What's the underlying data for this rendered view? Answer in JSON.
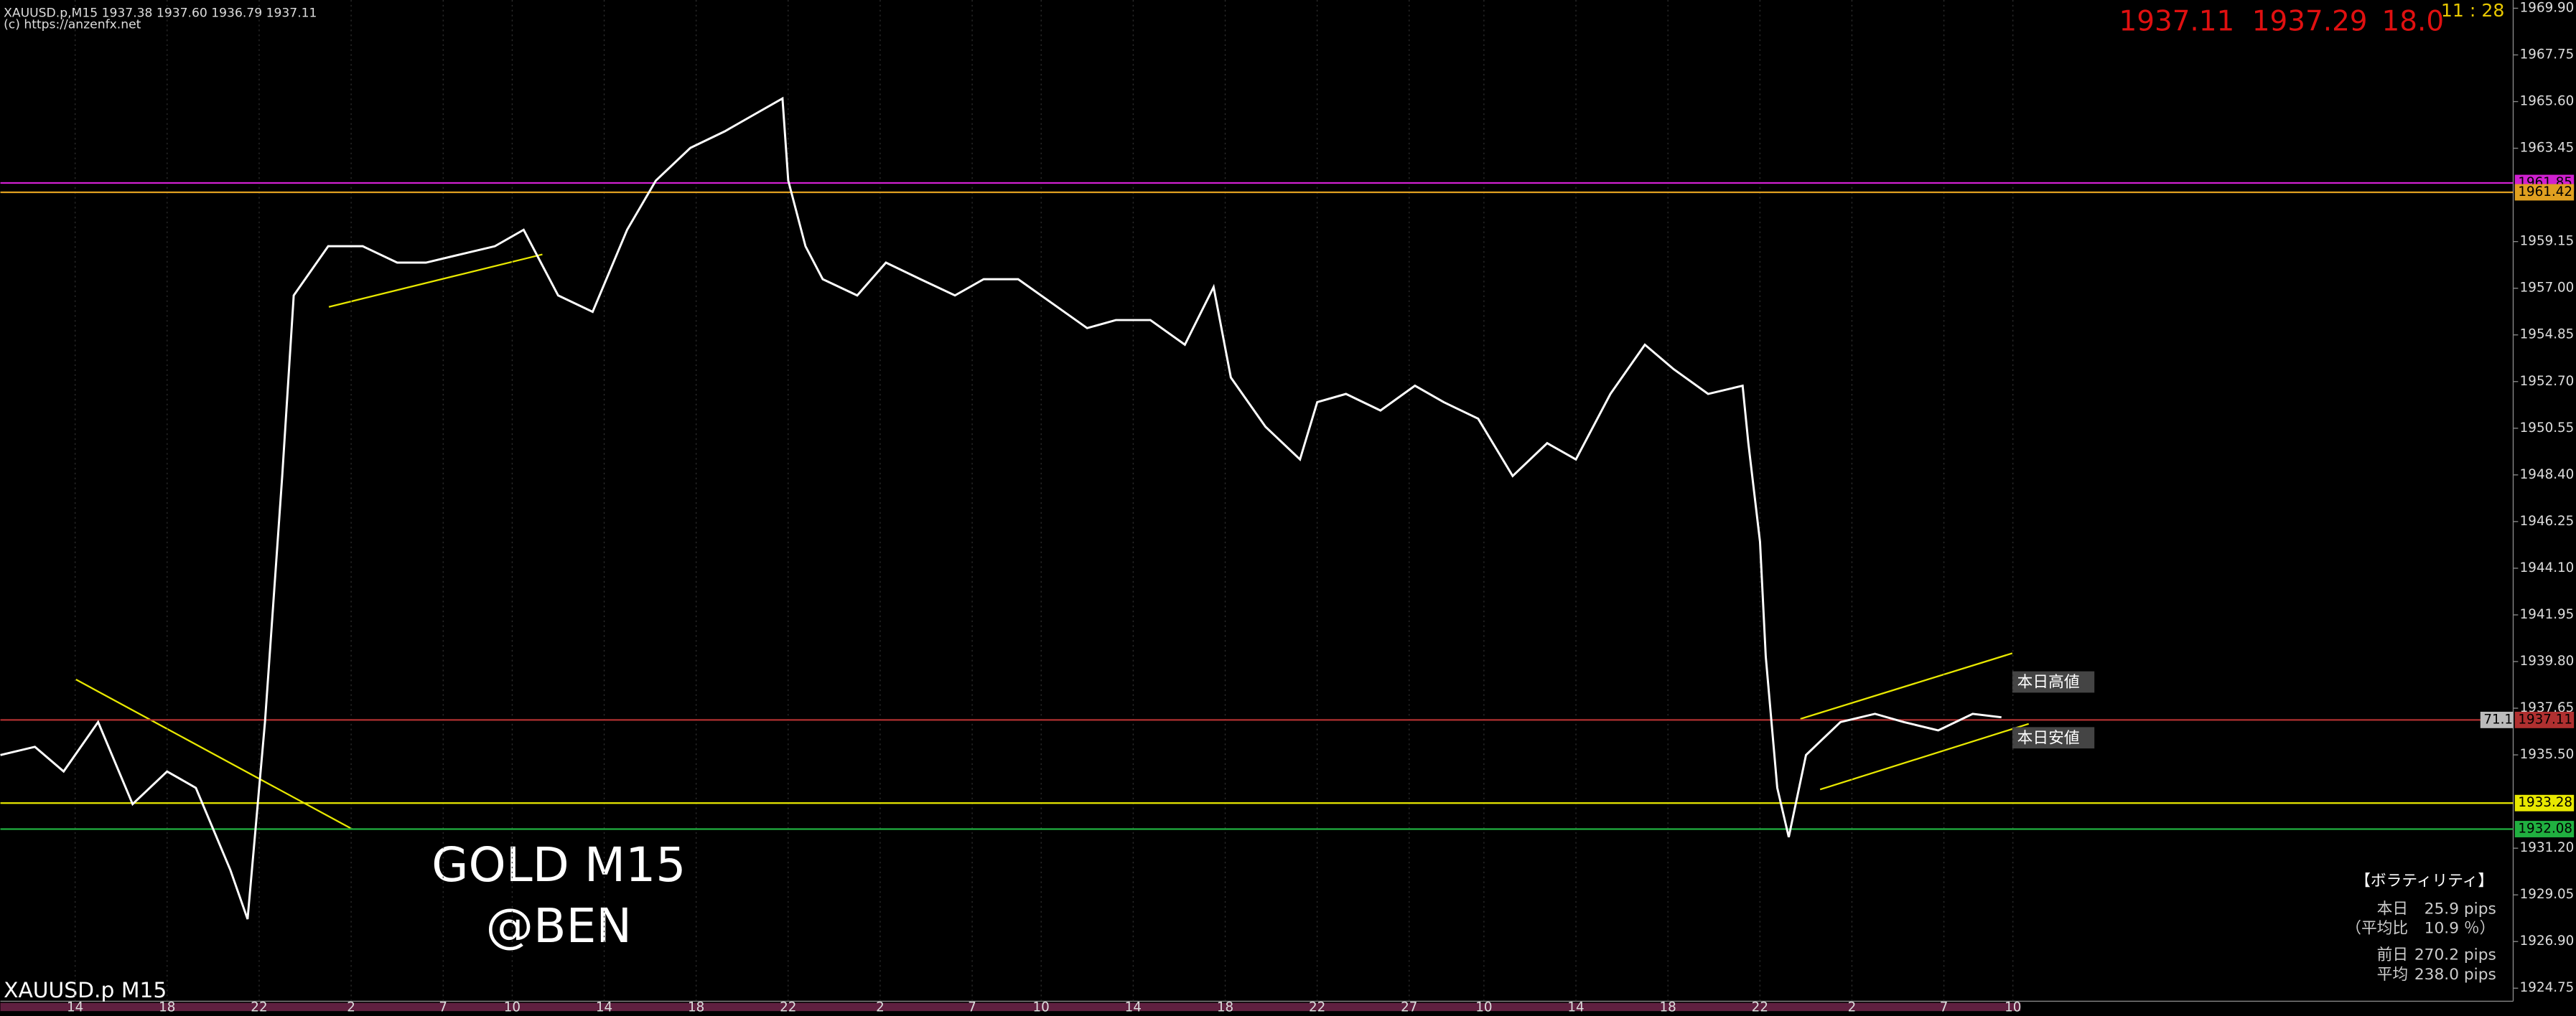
{
  "chart_data": {
    "type": "line",
    "title": "XAUUSD.p,M15  1937.38 1937.60 1936.79 1937.11",
    "subtitle": "(c) https://anzenfx.net",
    "x": [
      0,
      6,
      11,
      17,
      23,
      29,
      34,
      40,
      43,
      46,
      49,
      51,
      57,
      63,
      69,
      74,
      80,
      86,
      91,
      97,
      103,
      109,
      114,
      120,
      126,
      131,
      136,
      137,
      140,
      143,
      149,
      154,
      160,
      166,
      171,
      177,
      183,
      189,
      194,
      200,
      206,
      211,
      214,
      220,
      226,
      229,
      234,
      240,
      246,
      251,
      257,
      263,
      269,
      274,
      280,
      286,
      291,
      297,
      303,
      304,
      306,
      307,
      309,
      311,
      314,
      320,
      326,
      331,
      337,
      343,
      348
    ],
    "series": [
      {
        "name": "XAUUSD.p M15",
        "color": "#ffffff",
        "values": [
          1935.49,
          1935.87,
          1934.74,
          1937.01,
          1933.23,
          1934.74,
          1933.98,
          1930.2,
          1927.93,
          1937.01,
          1948.35,
          1956.67,
          1958.94,
          1958.94,
          1958.18,
          1958.18,
          1958.56,
          1958.94,
          1959.69,
          1956.67,
          1955.91,
          1959.69,
          1961.96,
          1963.47,
          1964.23,
          1964.99,
          1965.74,
          1961.96,
          1958.94,
          1957.42,
          1956.67,
          1958.18,
          1957.42,
          1956.67,
          1957.42,
          1957.42,
          1956.29,
          1955.16,
          1955.53,
          1955.53,
          1954.4,
          1957.05,
          1952.89,
          1950.62,
          1949.11,
          1951.75,
          1952.13,
          1951.37,
          1952.51,
          1951.75,
          1950.99,
          1948.35,
          1949.86,
          1949.11,
          1952.13,
          1954.4,
          1953.27,
          1952.13,
          1952.51,
          1949.86,
          1945.32,
          1940.03,
          1933.98,
          1931.71,
          1935.49,
          1937.01,
          1937.39,
          1937.01,
          1936.63,
          1937.39,
          1937.23
        ]
      }
    ],
    "xlim": [
      0,
      437
    ],
    "ylim": [
      1924.15,
      1970.28
    ],
    "xticks": [
      {
        "value": 13,
        "label": "14"
      },
      {
        "value": 29,
        "label": "18"
      },
      {
        "value": 45,
        "label": "22"
      },
      {
        "value": 61,
        "label": "2"
      },
      {
        "value": 77,
        "label": "7"
      },
      {
        "value": 89,
        "label": "10"
      },
      {
        "value": 105,
        "label": "14"
      },
      {
        "value": 121,
        "label": "18"
      },
      {
        "value": 137,
        "label": "22"
      },
      {
        "value": 153,
        "label": "2"
      },
      {
        "value": 169,
        "label": "7"
      },
      {
        "value": 181,
        "label": "10"
      },
      {
        "value": 197,
        "label": "14"
      },
      {
        "value": 213,
        "label": "18"
      },
      {
        "value": 229,
        "label": "22"
      },
      {
        "value": 245,
        "label": "27"
      },
      {
        "value": 258,
        "label": "10"
      },
      {
        "value": 274,
        "label": "14"
      },
      {
        "value": 290,
        "label": "18"
      },
      {
        "value": 306,
        "label": "22"
      },
      {
        "value": 322,
        "label": "2"
      },
      {
        "value": 338,
        "label": "7"
      },
      {
        "value": 350,
        "label": "10"
      }
    ],
    "yticks": [
      {
        "value": 1969.9,
        "label": "1969.90"
      },
      1967.75,
      {
        "value": 1965.6,
        "label": "1965.60"
      },
      1963.45,
      1959.15,
      {
        "value": 1957,
        "label": "1957.00"
      },
      1954.85,
      {
        "value": 1952.7,
        "label": "1952.70"
      },
      1950.55,
      {
        "value": 1948.4,
        "label": "1948.40"
      },
      1946.25,
      {
        "value": 1944.1,
        "label": "1944.10"
      },
      1941.95,
      {
        "value": 1939.8,
        "label": "1939.80"
      },
      1937.65,
      {
        "value": 1935.5,
        "label": "1935.50"
      },
      {
        "value": 1931.2,
        "label": "1931.20"
      },
      1929.05,
      {
        "value": 1926.9,
        "label": "1926.90"
      },
      1924.75
    ],
    "grid": true,
    "levels": [
      {
        "value": 1961.85,
        "color": "#d020d0"
      },
      {
        "value": 1961.42,
        "color": "#e0a020"
      },
      {
        "value": 1937.11,
        "color": "#b03030"
      },
      {
        "value": 1933.28,
        "color": "#e8e800"
      },
      {
        "value": 1932.08,
        "color": "#20b040"
      }
    ],
    "oscillator": "71.1",
    "annotations": [
      "GOLD M15",
      "@BEN",
      "本日高値",
      "本日安値"
    ],
    "ticker": {
      "bid": "1937.11",
      "ask": "1937.29",
      "spread": "18.0",
      "time": "11 : 28"
    },
    "volatility": {
      "title": "【ボラティリティ】",
      "rows": [
        [
          "本日",
          "25.9",
          "pips"
        ],
        [
          "（平均比",
          "10.9",
          "％）"
        ],
        [
          "前日",
          "270.2",
          "pips"
        ],
        [
          "平均",
          "238.0",
          "pips"
        ]
      ]
    }
  }
}
